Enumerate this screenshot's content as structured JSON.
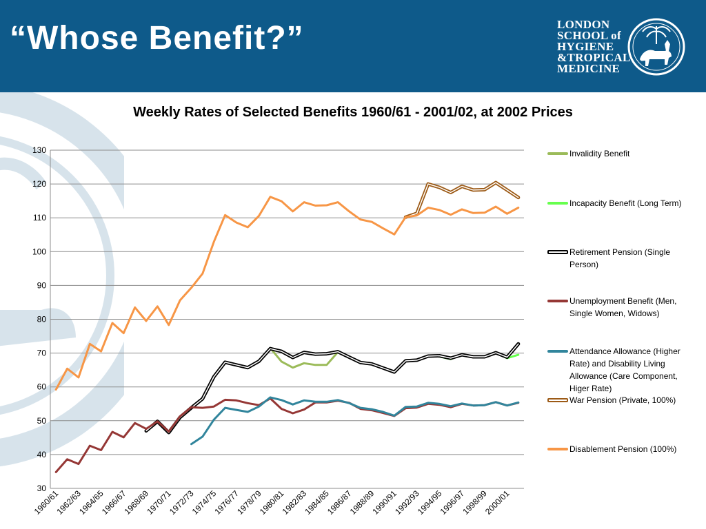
{
  "slide": {
    "title": "“Whose Benefit?”",
    "logo": {
      "lines": [
        "LONDON",
        "SCHOOL of",
        "HYGIENE",
        "&TROPICAL",
        "MEDICINE"
      ]
    },
    "colors": {
      "header": "#0e5a8a"
    }
  },
  "chart_data": {
    "type": "line",
    "title": "Weekly Rates of Selected Benefits 1960/61 - 2001/02, at 2002 Prices",
    "xlabel": "",
    "ylabel": "",
    "ylim": [
      30,
      130
    ],
    "yticks": [
      30,
      40,
      50,
      60,
      70,
      80,
      90,
      100,
      110,
      120,
      130
    ],
    "grid": true,
    "legend_position": "right",
    "categories": [
      "1960/61",
      "1961/62",
      "1962/63",
      "1963/64",
      "1964/65",
      "1965/66",
      "1966/67",
      "1967/68",
      "1968/69",
      "1969/70",
      "1970/71",
      "1971/72",
      "1972/73",
      "1973/74",
      "1974/75",
      "1975/76",
      "1976/77",
      "1977/78",
      "1978/79",
      "1979/80",
      "1980/81",
      "1981/82",
      "1982/83",
      "1983/84",
      "1984/85",
      "1985/86",
      "1986/87",
      "1987/88",
      "1988/89",
      "1989/90",
      "1990/91",
      "1991/92",
      "1992/93",
      "1993/94",
      "1994/95",
      "1995/96",
      "1996/97",
      "1997/98",
      "1998/99",
      "1999/00",
      "2000/01",
      "2001/02"
    ],
    "tick_labels": [
      "1960/61",
      "1962/63",
      "1964/65",
      "1966/67",
      "1968/69",
      "1970/71",
      "1972/73",
      "1974/75",
      "1976/77",
      "1978/79",
      "1980/81",
      "1982/83",
      "1984/85",
      "1986/87",
      "1988/89",
      "1990/91",
      "1992/93",
      "1994/95",
      "1996/97",
      "1998/99",
      "2000/01"
    ],
    "series": [
      {
        "name": "Invalidity Benefit",
        "color": "#9bbb59",
        "style": "solid",
        "values": [
          null,
          null,
          null,
          null,
          null,
          null,
          null,
          null,
          null,
          null,
          null,
          null,
          null,
          null,
          null,
          null,
          null,
          null,
          null,
          71.5,
          67.5,
          65.7,
          67.0,
          66.5,
          66.5,
          70.3,
          null,
          null,
          null,
          null,
          null,
          null,
          null,
          null,
          null,
          null,
          null,
          null,
          null,
          null,
          null,
          null
        ]
      },
      {
        "name": "Incapacity Benefit (Long Term)",
        "color": "#66ff4d",
        "style": "solid",
        "values": [
          null,
          null,
          null,
          null,
          null,
          null,
          null,
          null,
          null,
          null,
          null,
          null,
          null,
          null,
          null,
          null,
          null,
          null,
          null,
          null,
          null,
          null,
          null,
          null,
          null,
          null,
          null,
          null,
          null,
          null,
          null,
          null,
          null,
          null,
          69.0,
          68.2,
          69.6,
          68.8,
          68.8,
          70.2,
          68.5,
          69.5
        ]
      },
      {
        "name": "Retirement Pension (Single Person)",
        "color": "#000000",
        "style": "outlined",
        "values": [
          null,
          null,
          null,
          null,
          null,
          null,
          null,
          null,
          47.0,
          49.8,
          46.5,
          51.0,
          53.8,
          56.5,
          63.0,
          67.3,
          66.5,
          65.7,
          67.6,
          71.3,
          70.5,
          68.7,
          70.2,
          69.7,
          69.8,
          70.4,
          68.8,
          67.2,
          66.8,
          65.6,
          64.4,
          67.7,
          67.9,
          69.1,
          69.2,
          68.5,
          69.5,
          68.9,
          68.9,
          70.1,
          68.8,
          72.7
        ]
      },
      {
        "name": "Unemployment Benefit (Men, Single Women, Widows)",
        "color": "#953735",
        "style": "solid",
        "values": [
          34.8,
          38.6,
          37.2,
          42.6,
          41.3,
          46.7,
          45.1,
          49.3,
          47.6,
          49.8,
          46.8,
          51.3,
          54.0,
          53.8,
          54.2,
          56.2,
          56.0,
          55.2,
          54.6,
          56.6,
          53.5,
          52.2,
          53.3,
          55.4,
          55.4,
          55.9,
          55.3,
          53.5,
          53.1,
          52.3,
          51.4,
          53.7,
          53.9,
          55.0,
          54.7,
          54.0,
          55.0,
          54.5,
          54.6,
          55.5,
          54.5,
          55.3
        ]
      },
      {
        "name": "Attendance Allowance (Higher Rate) and Disability Living Allowance (Care Component, Higer Rate)",
        "color": "#31859c",
        "style": "solid",
        "values": [
          null,
          null,
          null,
          null,
          null,
          null,
          null,
          null,
          null,
          null,
          null,
          null,
          43.1,
          45.3,
          50.3,
          53.8,
          53.2,
          52.6,
          54.2,
          56.9,
          56.1,
          54.8,
          56.0,
          55.6,
          55.6,
          56.1,
          55.2,
          53.8,
          53.4,
          52.6,
          51.5,
          54.1,
          54.2,
          55.3,
          55.0,
          54.3,
          55.1,
          54.5,
          54.6,
          55.5,
          54.5,
          55.4
        ]
      },
      {
        "name": "War Pension (Private, 100%)",
        "color": "#9c5a16",
        "style": "outlined",
        "values": [
          null,
          null,
          null,
          null,
          null,
          null,
          null,
          null,
          null,
          null,
          null,
          null,
          null,
          null,
          null,
          null,
          null,
          null,
          null,
          null,
          null,
          null,
          null,
          null,
          null,
          null,
          null,
          null,
          null,
          null,
          null,
          110.2,
          111.3,
          120.0,
          119.0,
          117.5,
          119.3,
          118.2,
          118.3,
          120.4,
          118.2,
          116.0
        ]
      },
      {
        "name": "Disablement Pension (100%)",
        "color": "#f79646",
        "style": "solid",
        "values": [
          59.2,
          65.4,
          62.8,
          72.7,
          70.5,
          78.9,
          75.9,
          83.5,
          79.5,
          83.8,
          78.3,
          85.6,
          89.3,
          93.5,
          102.9,
          110.8,
          108.6,
          107.2,
          110.6,
          116.2,
          114.9,
          111.9,
          114.6,
          113.6,
          113.7,
          114.6,
          111.9,
          109.5,
          108.8,
          106.9,
          105.1,
          110.2,
          110.7,
          113.0,
          112.3,
          110.9,
          112.5,
          111.4,
          111.5,
          113.3,
          111.2,
          113.0
        ]
      }
    ]
  }
}
